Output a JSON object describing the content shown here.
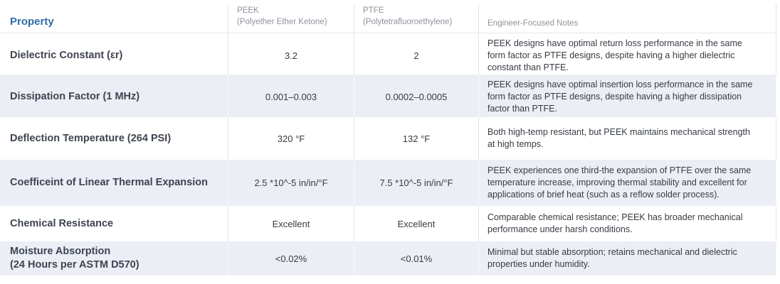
{
  "chart_data": {
    "type": "table",
    "columns": [
      {
        "title": "Property",
        "subtitle": ""
      },
      {
        "title": "PEEK",
        "subtitle": "(Polyether Ether Ketone)"
      },
      {
        "title": "PTFE",
        "subtitle": "(Polytetrafluoroethylene)"
      },
      {
        "title": "Engineer-Focused Notes",
        "subtitle": ""
      }
    ],
    "rows": [
      {
        "property": "Dielectric Constant (εr)",
        "property_line2": "",
        "peek": "3.2",
        "ptfe": "2",
        "notes": "PEEK designs have optimal return loss performance in the same form factor as PTFE designs, despite having a higher dielectric constant than PTFE."
      },
      {
        "property": "Dissipation Factor (1 MHz)",
        "property_line2": "",
        "peek": "0.001–0.003",
        "ptfe": "0.0002–0.0005",
        "notes": "PEEK designs have optimal insertion loss performance in the same form factor as PTFE designs, despite having a higher dissipation factor than PTFE."
      },
      {
        "property": "Deflection Temperature (264 PSI)",
        "property_line2": "",
        "peek": "320 °F",
        "ptfe": "132 °F",
        "notes": "Both high-temp resistant, but PEEK maintains mechanical strength at high temps."
      },
      {
        "property": "Coefficeint of Linear Thermal Expansion",
        "property_line2": "",
        "peek": "2.5 *10^-5 in/in/°F",
        "ptfe": "7.5 *10^-5 in/in/°F",
        "notes": "PEEK experiences one third-the expansion of PTFE over the same temperature increase, improving thermal stability and excellent for applications of brief heat (such as a reflow solder process)."
      },
      {
        "property": "Chemical Resistance",
        "property_line2": "",
        "peek": "Excellent",
        "ptfe": "Excellent",
        "notes": "Comparable chemical resistance; PEEK has broader mechanical performance under harsh conditions."
      },
      {
        "property": "Moisture Absorption",
        "property_line2": "(24 Hours per ASTM D570)",
        "peek": "<0.02%",
        "ptfe": "<0.01%",
        "notes": "Minimal but stable absorption; retains mechanical and dielectric properties under humidity."
      }
    ]
  },
  "colors": {
    "accent_blue": "#2E6DA9",
    "row_shade": "#EBEEF5",
    "divider": "#E2E4E8",
    "column_header_text": "#8D929B",
    "property_text": "#3E4450",
    "body_text": "#363B42"
  }
}
